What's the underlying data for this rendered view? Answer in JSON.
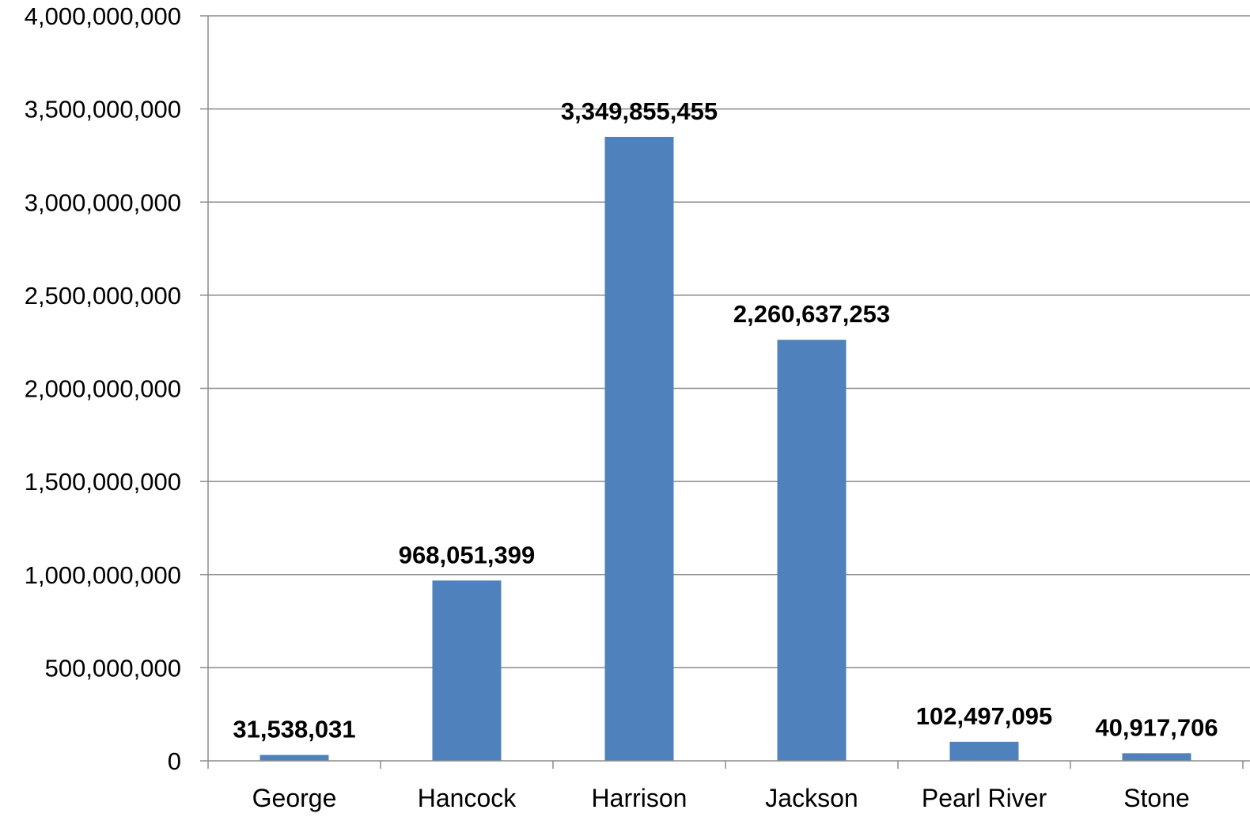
{
  "chart_data": {
    "type": "bar",
    "categories": [
      "George",
      "Hancock",
      "Harrison",
      "Jackson",
      "Pearl River",
      "Stone"
    ],
    "values": [
      31538031,
      968051399,
      3349855455,
      2260637253,
      102497095,
      40917706
    ],
    "data_labels": [
      "31,538,031",
      "968,051,399",
      "3,349,855,455",
      "2,260,637,253",
      "102,497,095",
      "40,917,706"
    ],
    "yticks": [
      0,
      500000000,
      1000000000,
      1500000000,
      2000000000,
      2500000000,
      3000000000,
      3500000000,
      4000000000
    ],
    "ytick_labels": [
      "0",
      "500,000,000",
      "1,000,000,000",
      "1,500,000,000",
      "2,000,000,000",
      "2,500,000,000",
      "3,000,000,000",
      "3,500,000,000",
      "4,000,000,000"
    ],
    "ylim": [
      0,
      4000000000
    ],
    "title": "",
    "xlabel": "",
    "ylabel": "",
    "grid": true,
    "legend": "none",
    "bar_color": "#4f81bd",
    "grid_color": "#8c8c8c"
  }
}
